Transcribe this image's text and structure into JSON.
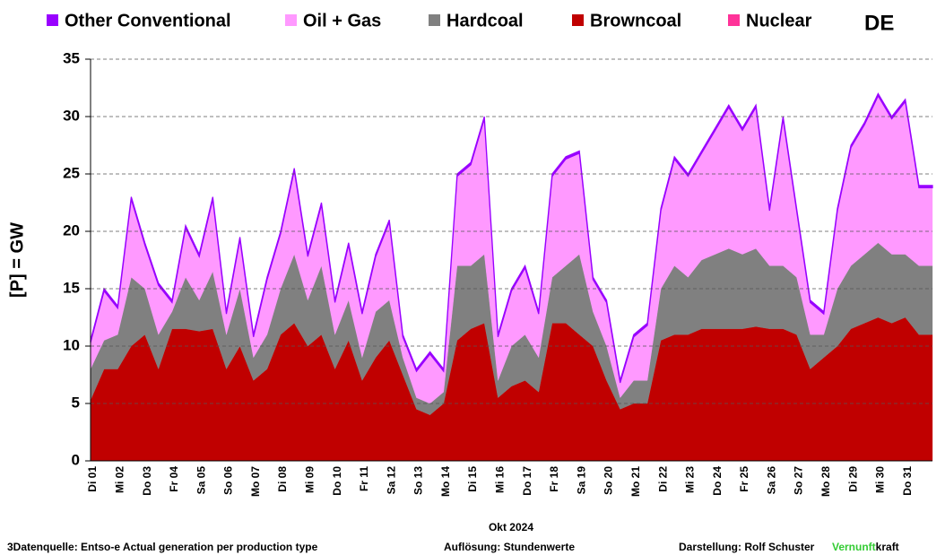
{
  "chart_data": {
    "type": "stacked_area",
    "region": "DE",
    "ylabel": "[P] = GW",
    "xlabel": "Okt 2024",
    "ylim": [
      0,
      35
    ],
    "yticks": [
      0,
      5,
      10,
      15,
      20,
      25,
      30,
      35
    ],
    "grid": true,
    "categories": [
      "Di 01",
      null,
      "Mi 02",
      null,
      "Do 03",
      null,
      "Fr 04",
      null,
      "Sa 05",
      null,
      "So 06",
      null,
      "Mo 07",
      null,
      "Di 08",
      null,
      "Mi 09",
      null,
      "Do 10",
      null,
      "Fr 11",
      null,
      "Sa 12",
      null,
      "So 13",
      null,
      "Mo 14",
      null,
      "Di 15",
      null,
      "Mi 16",
      null,
      "Do 17",
      null,
      "Fr 18",
      null,
      "Sa 19",
      null,
      "So 20",
      null,
      "Mo 21",
      null,
      "Di 22",
      null,
      "Mi 23",
      null,
      "Do 24",
      null,
      "Fr 25",
      null,
      "Sa 26",
      null,
      "So 27",
      null,
      "Mo 28",
      null,
      "Di 29",
      null,
      "Mi 30",
      null,
      "Do 31",
      null
    ],
    "series": [
      {
        "name": "Other Conventional",
        "color": "#9900ff",
        "values": [
          0.2,
          0.2,
          0.2,
          0.2,
          0.2,
          0.2,
          0.2,
          0.2,
          0.2,
          0.2,
          0.2,
          0.2,
          0.2,
          0.2,
          0.2,
          0.2,
          0.2,
          0.2,
          0.2,
          0.2,
          0.2,
          0.2,
          0.2,
          0.2,
          0.2,
          0.2,
          0.2,
          0.2,
          0.2,
          0.2,
          0.2,
          0.2,
          0.2,
          0.2,
          0.2,
          0.2,
          0.2,
          0.2,
          0.2,
          0.2,
          0.2,
          0.2,
          0.2,
          0.2,
          0.2,
          0.2,
          0.2,
          0.2,
          0.2,
          0.2,
          0.2,
          0.2,
          0.2,
          0.2,
          0.2,
          0.2,
          0.2,
          0.2,
          0.2,
          0.2,
          0.2,
          0.2
        ]
      },
      {
        "name": "Oil + Gas",
        "color": "#ff99ff",
        "values": [
          2.3,
          4.3,
          2.3,
          6.8,
          3.8,
          4.3,
          0.8,
          4.3,
          3.8,
          6.3,
          1.8,
          4.3,
          1.8,
          4.8,
          4.8,
          7.3,
          3.8,
          5.3,
          2.8,
          4.8,
          3.8,
          4.8,
          6.8,
          1.8,
          2.3,
          4.3,
          1.8,
          7.8,
          8.8,
          11.8,
          3.8,
          4.8,
          5.8,
          3.8,
          8.8,
          9.3,
          8.8,
          2.8,
          3.8,
          1.3,
          3.8,
          4.8,
          6.8,
          9.3,
          8.8,
          9.3,
          10.8,
          12.3,
          10.8,
          12.3,
          4.8,
          12.8,
          5.8,
          2.8,
          1.8,
          6.8,
          10.3,
          11.3,
          12.8,
          11.8,
          13.3,
          6.8
        ]
      },
      {
        "name": "Hardcoal",
        "color": "#808080",
        "values": [
          2.7,
          2.5,
          3,
          6,
          4,
          3,
          1.5,
          4.5,
          2.7,
          5,
          3,
          5,
          2,
          3,
          4,
          6,
          4,
          6,
          3,
          3.5,
          2,
          4,
          3.5,
          1.5,
          1,
          1,
          1,
          6.5,
          5.5,
          6,
          1.5,
          3.5,
          4,
          3,
          4,
          5,
          7,
          3,
          3,
          1,
          2,
          2,
          4.5,
          6,
          5,
          6,
          6.5,
          7,
          6.5,
          6.8,
          5.5,
          5.5,
          5,
          3,
          2,
          5,
          5.5,
          6,
          6.5,
          6,
          5.5,
          6
        ]
      },
      {
        "name": "Browncoal",
        "color": "#c00000",
        "values": [
          5.3,
          8,
          8,
          10,
          11,
          8,
          11.5,
          11.5,
          11.3,
          11.5,
          8,
          10,
          7,
          8,
          11,
          12,
          10,
          11,
          8,
          10.5,
          7,
          9,
          10.5,
          7.5,
          4.5,
          4,
          5,
          10.5,
          11.5,
          12,
          5.5,
          6.5,
          7,
          6,
          12,
          12,
          11,
          10,
          7,
          4.5,
          5,
          5,
          10.5,
          11,
          11,
          11.5,
          11.5,
          11.5,
          11.5,
          11.7,
          11.5,
          11.5,
          11,
          8,
          9,
          10,
          11.5,
          12,
          12.5,
          12,
          12.5,
          11
        ]
      },
      {
        "name": "Nuclear",
        "color": "#ff3399",
        "values": [
          0,
          0,
          0,
          0,
          0,
          0,
          0,
          0,
          0,
          0,
          0,
          0,
          0,
          0,
          0,
          0,
          0,
          0,
          0,
          0,
          0,
          0,
          0,
          0,
          0,
          0,
          0,
          0,
          0,
          0,
          0,
          0,
          0,
          0,
          0,
          0,
          0,
          0,
          0,
          0,
          0,
          0,
          0,
          0,
          0,
          0,
          0,
          0,
          0,
          0,
          0,
          0,
          0,
          0,
          0,
          0,
          0,
          0,
          0,
          0,
          0,
          0
        ]
      }
    ]
  },
  "footer": {
    "source": "3Datenquelle: Entso-e  Actual generation per production type",
    "resolution": "Auflösung: Stundenwerte",
    "author": "Darstellung:  Rolf Schuster",
    "brand_green": "Vernunft",
    "brand_rest": "kraft"
  }
}
